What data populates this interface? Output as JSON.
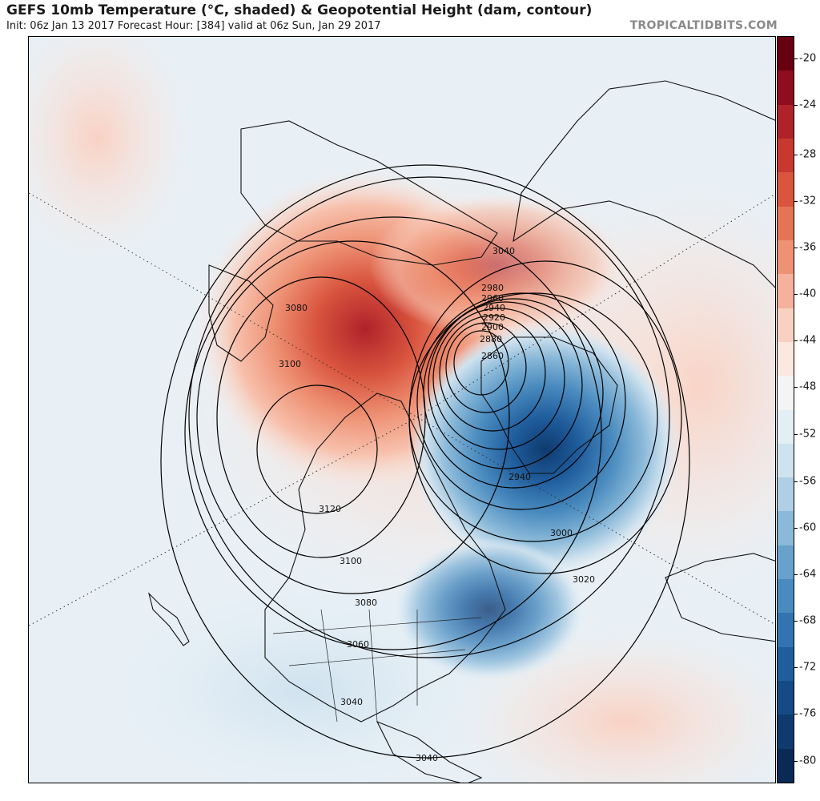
{
  "header": {
    "title": "GEFS 10mb Temperature (°C, shaded) & Geopotential Height (dam, contour)",
    "subtitle": "Init: 06z Jan 13 2017   Forecast Hour: [384]   valid at 06z Sun, Jan 29 2017",
    "brand": "TROPICALTIDBITS.COM"
  },
  "map": {
    "projection": "polar stereographic",
    "field_shaded": "temperature",
    "field_contour": "geopotential height",
    "warm_anomaly_region": "northern Asia / Siberia",
    "cold_vortex_region": "Greenland / Baffin Bay",
    "contour_labels": [
      "3040",
      "2980",
      "2960",
      "2940",
      "2920",
      "2900",
      "2880",
      "2860",
      "3080",
      "3100",
      "2940",
      "3120",
      "3000",
      "3020",
      "3100",
      "3080",
      "3060",
      "3040",
      "3040"
    ]
  },
  "colorbar": {
    "labels": [
      "-20",
      "-24",
      "-28",
      "-32",
      "-36",
      "-40",
      "-44",
      "-48",
      "-52",
      "-56",
      "-60",
      "-64",
      "-68",
      "-72",
      "-76",
      "-80"
    ],
    "colors": [
      "#670010",
      "#8e0d1e",
      "#b0222a",
      "#c8382f",
      "#d9553e",
      "#e57457",
      "#ee9275",
      "#f5b19b",
      "#f9d1c3",
      "#fbe8df",
      "#f4f4f4",
      "#e4eef5",
      "#cfe2ef",
      "#b0cfe4",
      "#8ab9d9",
      "#68a2cc",
      "#4a8bbf",
      "#3274b0",
      "#1f5d9d",
      "#154a86",
      "#0f3a6e",
      "#0a2a55"
    ]
  }
}
